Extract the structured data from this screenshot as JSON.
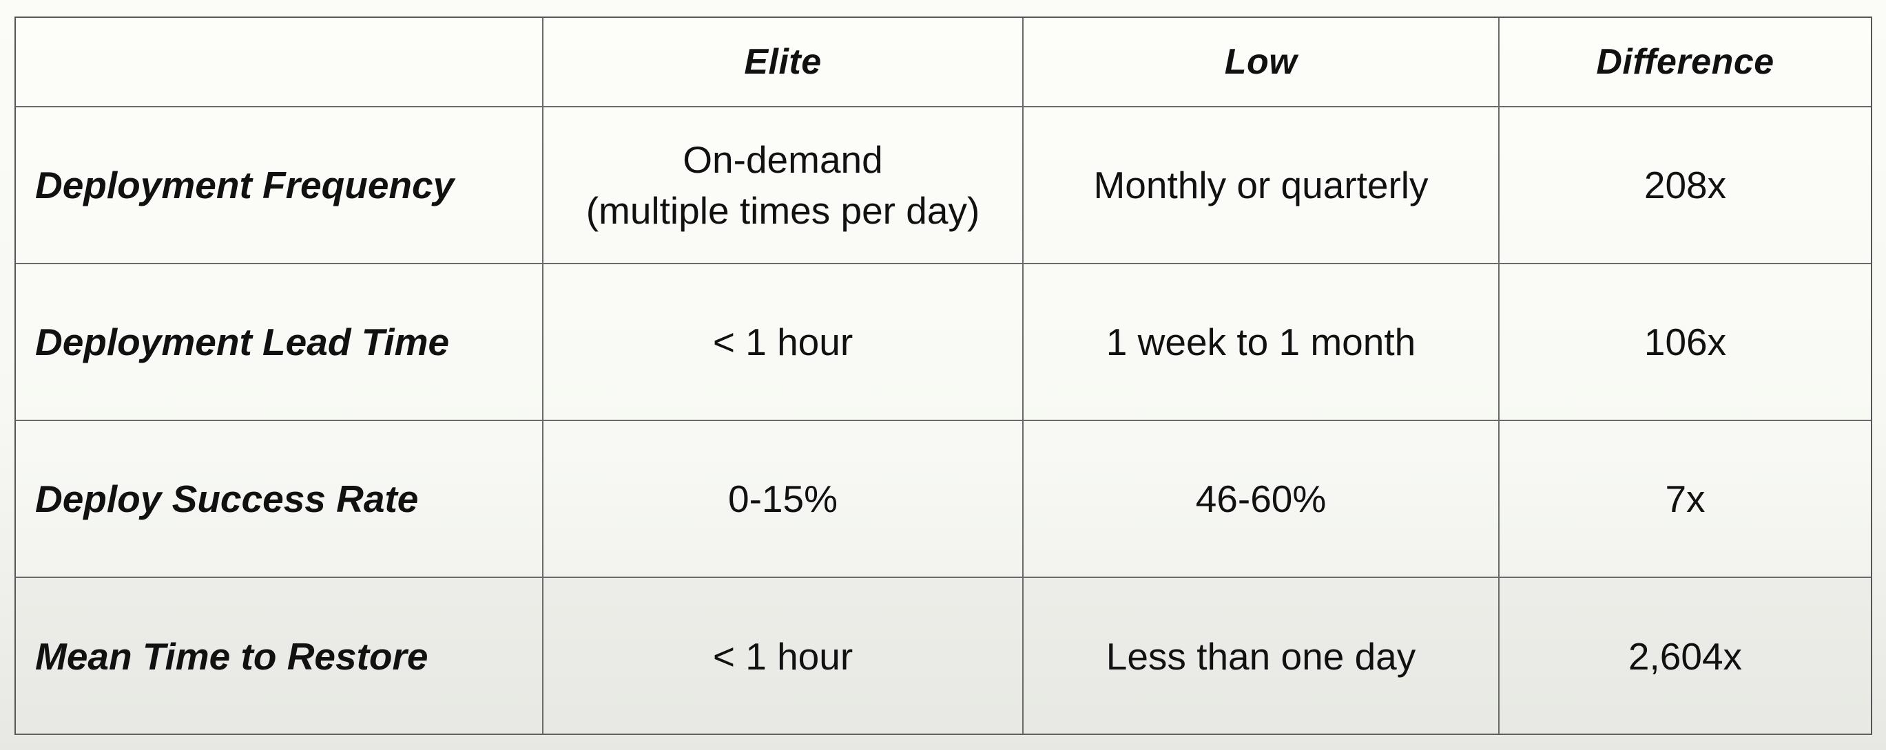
{
  "table": {
    "headers": [
      "",
      "Elite",
      "Low",
      "Difference"
    ],
    "rows": [
      {
        "metric": "Deployment Frequency",
        "elite": [
          "On-demand",
          "(multiple times per day)"
        ],
        "low": "Monthly or quarterly",
        "difference": "208x"
      },
      {
        "metric": "Deployment Lead Time",
        "elite": [
          "< 1 hour"
        ],
        "low": "1 week to 1 month",
        "difference": "106x"
      },
      {
        "metric": "Deploy Success Rate",
        "elite": [
          "0-15%"
        ],
        "low": "46-60%",
        "difference": "7x"
      },
      {
        "metric": "Mean Time to Restore",
        "elite": [
          "< 1 hour"
        ],
        "low": "Less than one day",
        "difference": "2,604x"
      }
    ]
  }
}
